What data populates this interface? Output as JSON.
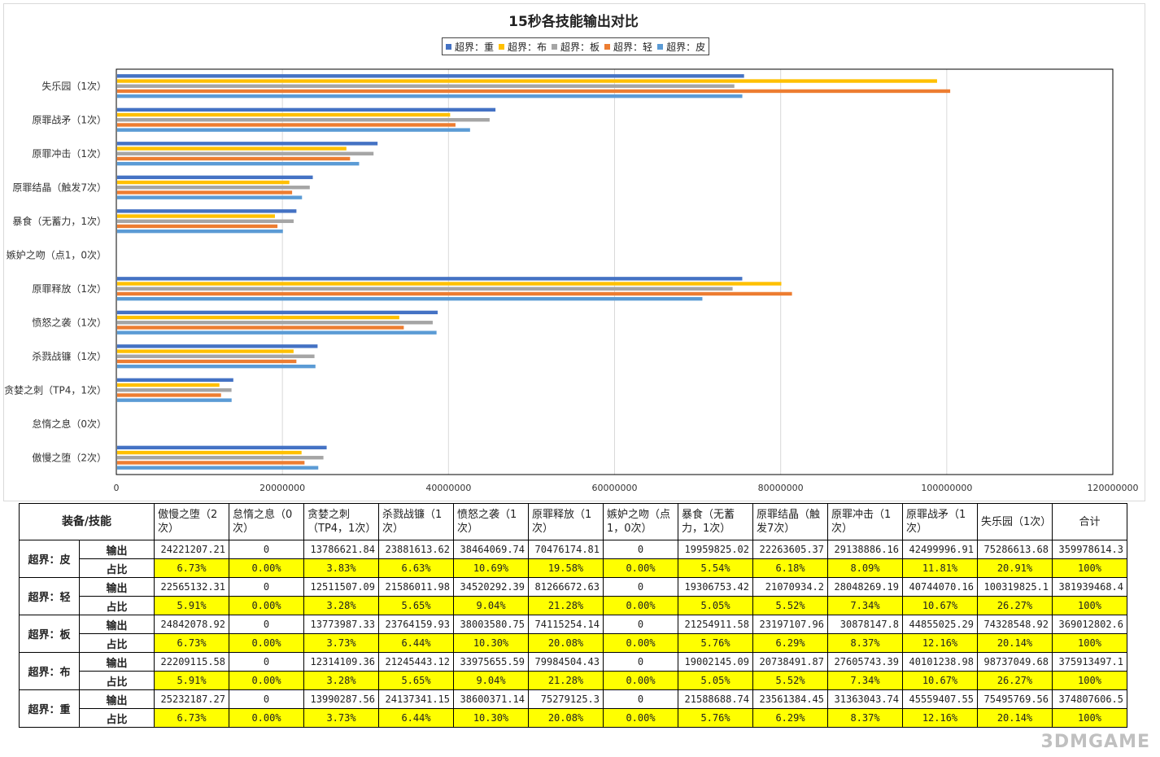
{
  "chart_data": {
    "type": "bar",
    "orientation": "horizontal",
    "title": "15秒各技能输出对比",
    "categories": [
      "失乐园（1次）",
      "原罪战矛（1次）",
      "原罪冲击（1次）",
      "原罪结晶（触发7次）",
      "暴食（无蓄力，1次）",
      "嫉妒之吻（点1，0次）",
      "原罪释放（1次）",
      "愤怒之袭（1次）",
      "杀戮战镰（1次）",
      "贪婪之刺（TP4，1次）",
      "怠惰之息（0次）",
      "傲慢之堕（2次）"
    ],
    "series": [
      {
        "name": "超界：重",
        "color": "#4472c4",
        "values": [
          75495769.56,
          45559407.55,
          31363043.74,
          23561384.45,
          21588688.74,
          0,
          75279125.3,
          38600371.14,
          24137341.15,
          13990287.56,
          0,
          25232187.27
        ]
      },
      {
        "name": "超界：布",
        "color": "#ffc000",
        "values": [
          98737049.68,
          40101238.98,
          27605743.39,
          20738491.87,
          19002145.09,
          0,
          79984504.43,
          33975655.59,
          21245443.12,
          12314109.36,
          0,
          22209115.58
        ]
      },
      {
        "name": "超界：板",
        "color": "#a5a5a5",
        "values": [
          74328548.92,
          44855025.29,
          30878147.8,
          23197107.96,
          21254911.58,
          0,
          74115254.14,
          38003580.75,
          23764159.93,
          13773987.33,
          0,
          24842078.92
        ]
      },
      {
        "name": "超界：轻",
        "color": "#ed7d31",
        "values": [
          100319825.1,
          40744070.16,
          28048269.19,
          21070934.2,
          19306753.42,
          0,
          81266672.63,
          34520292.39,
          21586011.98,
          12511507.09,
          0,
          22565132.31
        ]
      },
      {
        "name": "超界：皮",
        "color": "#5b9bd5",
        "values": [
          75286613.68,
          42499996.91,
          29138886.16,
          22263605.37,
          19959825.02,
          0,
          70476174.81,
          38464069.74,
          23881613.62,
          13786621.84,
          0,
          24221207.21
        ]
      }
    ],
    "xlim": [
      0,
      120000000
    ],
    "xticks": [
      "0",
      "20000000",
      "40000000",
      "60000000",
      "80000000",
      "100000000",
      "120000000"
    ],
    "xtick_values": [
      0,
      20000000,
      40000000,
      60000000,
      80000000,
      100000000,
      120000000
    ],
    "grid": true,
    "legend_position": "top"
  },
  "table": {
    "corner": "装备/技能",
    "headers": [
      "傲慢之堕（2次）",
      "怠惰之息（0次）",
      "贪婪之刺（TP4，1次）",
      "杀戮战镰（1次）",
      "愤怒之袭（1次）",
      "原罪释放（1次）",
      "嫉妒之吻（点1，0次）",
      "暴食（无蓄力，1次）",
      "原罪结晶（触发7次）",
      "原罪冲击（1次）",
      "原罪战矛（1次）",
      "失乐园（1次）",
      "合计"
    ],
    "output_label": "输出",
    "ratio_label": "占比",
    "rows": [
      {
        "equip": "超界：皮",
        "output": [
          "24221207.21",
          "0",
          "13786621.84",
          "23881613.62",
          "38464069.74",
          "70476174.81",
          "0",
          "19959825.02",
          "22263605.37",
          "29138886.16",
          "42499996.91",
          "75286613.68",
          "359978614.3"
        ],
        "ratio": [
          "6.73%",
          "0.00%",
          "3.83%",
          "6.63%",
          "10.69%",
          "19.58%",
          "0.00%",
          "5.54%",
          "6.18%",
          "8.09%",
          "11.81%",
          "20.91%",
          "100%"
        ]
      },
      {
        "equip": "超界：轻",
        "output": [
          "22565132.31",
          "0",
          "12511507.09",
          "21586011.98",
          "34520292.39",
          "81266672.63",
          "0",
          "19306753.42",
          "21070934.2",
          "28048269.19",
          "40744070.16",
          "100319825.1",
          "381939468.4"
        ],
        "ratio": [
          "5.91%",
          "0.00%",
          "3.28%",
          "5.65%",
          "9.04%",
          "21.28%",
          "0.00%",
          "5.05%",
          "5.52%",
          "7.34%",
          "10.67%",
          "26.27%",
          "100%"
        ]
      },
      {
        "equip": "超界：板",
        "output": [
          "24842078.92",
          "0",
          "13773987.33",
          "23764159.93",
          "38003580.75",
          "74115254.14",
          "0",
          "21254911.58",
          "23197107.96",
          "30878147.8",
          "44855025.29",
          "74328548.92",
          "369012802.6"
        ],
        "ratio": [
          "6.73%",
          "0.00%",
          "3.73%",
          "6.44%",
          "10.30%",
          "20.08%",
          "0.00%",
          "5.76%",
          "6.29%",
          "8.37%",
          "12.16%",
          "20.14%",
          "100%"
        ]
      },
      {
        "equip": "超界：布",
        "output": [
          "22209115.58",
          "0",
          "12314109.36",
          "21245443.12",
          "33975655.59",
          "79984504.43",
          "0",
          "19002145.09",
          "20738491.87",
          "27605743.39",
          "40101238.98",
          "98737049.68",
          "375913497.1"
        ],
        "ratio": [
          "5.91%",
          "0.00%",
          "3.28%",
          "5.65%",
          "9.04%",
          "21.28%",
          "0.00%",
          "5.05%",
          "5.52%",
          "7.34%",
          "10.67%",
          "26.27%",
          "100%"
        ]
      },
      {
        "equip": "超界：重",
        "output": [
          "25232187.27",
          "0",
          "13990287.56",
          "24137341.15",
          "38600371.14",
          "75279125.3",
          "0",
          "21588688.74",
          "23561384.45",
          "31363043.74",
          "45559407.55",
          "75495769.56",
          "374807606.5"
        ],
        "ratio": [
          "6.73%",
          "0.00%",
          "3.73%",
          "6.44%",
          "10.30%",
          "20.08%",
          "0.00%",
          "5.76%",
          "6.29%",
          "8.37%",
          "12.16%",
          "20.14%",
          "100%"
        ]
      }
    ]
  },
  "watermark": "3DMGAME"
}
